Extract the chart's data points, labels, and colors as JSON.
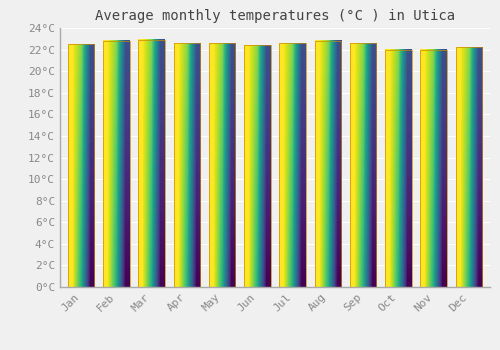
{
  "title": "Average monthly temperatures (°C ) in Utica",
  "months": [
    "Jan",
    "Feb",
    "Mar",
    "Apr",
    "May",
    "Jun",
    "Jul",
    "Aug",
    "Sep",
    "Oct",
    "Nov",
    "Dec"
  ],
  "values": [
    22.5,
    22.8,
    22.9,
    22.6,
    22.6,
    22.4,
    22.6,
    22.8,
    22.6,
    22.0,
    22.0,
    22.2
  ],
  "bar_color_light": "#FFD040",
  "bar_color_dark": "#FFA000",
  "bar_edge_color": "#CC8800",
  "background_color": "#f0f0f0",
  "grid_color": "#ffffff",
  "ylim": [
    0,
    24
  ],
  "yticks": [
    0,
    2,
    4,
    6,
    8,
    10,
    12,
    14,
    16,
    18,
    20,
    22,
    24
  ],
  "ytick_labels": [
    "0°C",
    "2°C",
    "4°C",
    "6°C",
    "8°C",
    "10°C",
    "12°C",
    "14°C",
    "16°C",
    "18°C",
    "20°C",
    "22°C",
    "24°C"
  ],
  "title_fontsize": 10,
  "tick_fontsize": 8,
  "bar_width": 0.75
}
